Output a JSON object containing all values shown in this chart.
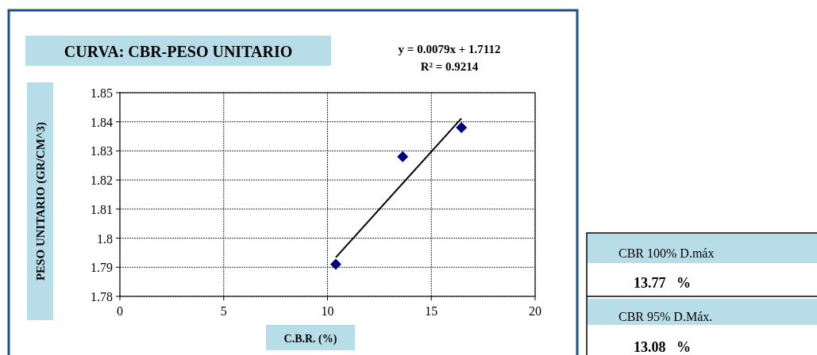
{
  "chart_data": {
    "type": "scatter",
    "title": "CURVA: CBR-PESO UNITARIO",
    "xlabel": "C.B.R. (%)",
    "ylabel": "PESO UNITARIO (GR/CM^3)",
    "series": [
      {
        "color": "#000080",
        "x": [
          10.4,
          13.62,
          16.45
        ],
        "values": [
          1.791,
          1.828,
          1.838
        ],
        "marker": "diamond"
      },
      {
        "type": "line",
        "color": "#000000",
        "x": [
          10.4,
          16.45
        ],
        "values": [
          1.7934,
          1.8412
        ],
        "marker": "none",
        "line_style": "solid"
      }
    ],
    "xlim": [
      0,
      20
    ],
    "xticks": [
      0,
      5,
      10,
      15,
      20
    ],
    "ylim": [
      1.78,
      1.85
    ],
    "yticks": [
      1.78,
      1.79,
      1.8,
      1.81,
      1.82,
      1.83,
      1.84,
      1.85
    ],
    "grid": true,
    "annotations": [
      "y = 0.0079x + 1.7112",
      "R² = 0.9214",
      "CBR 100% D.máx",
      "13.77   %",
      "CBR 95% D.Máx.",
      "13.08   %"
    ]
  }
}
